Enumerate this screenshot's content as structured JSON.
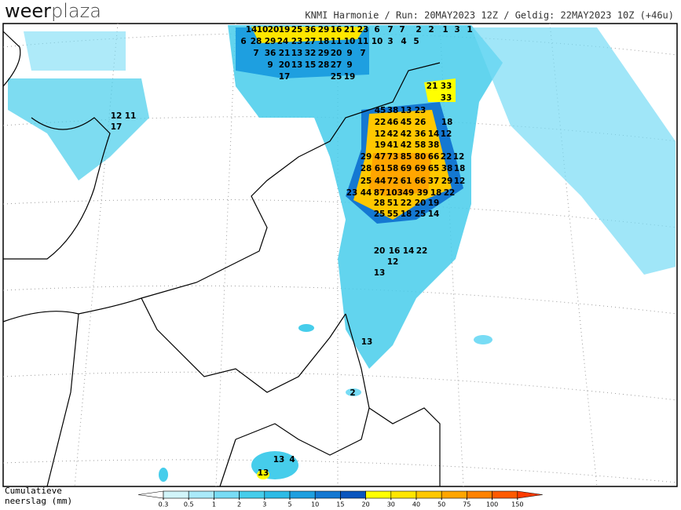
{
  "header": {
    "logo_left": "weer",
    "logo_right": "plaza",
    "info": "KNMI Harmonie / Run: 20MAY2023 12Z / Geldig: 22MAY2023 10Z (+46u)"
  },
  "legend": {
    "label_line1": "Cumulatieve",
    "label_line2": "neerslag (mm)",
    "ticks": [
      0.3,
      0.5,
      1,
      2,
      3,
      5,
      10,
      15,
      20,
      30,
      40,
      50,
      75,
      100,
      150
    ],
    "colors": [
      "#ffffff",
      "#d2f5fa",
      "#aaeafa",
      "#78dcf5",
      "#46cdeb",
      "#2dbbe6",
      "#1e9fe0",
      "#1478d2",
      "#0a55be",
      "#ffff00",
      "#ffe600",
      "#ffc800",
      "#ffa500",
      "#ff8200",
      "#ff5a00",
      "#ff3c00"
    ]
  },
  "map_labels": [
    14,
    10,
    20,
    19,
    25,
    36,
    29,
    16,
    21,
    23,
    6,
    7,
    7,
    2,
    2,
    1,
    3,
    1,
    6,
    28,
    29,
    24,
    23,
    27,
    18,
    11,
    10,
    11,
    10,
    3,
    4,
    5,
    7,
    36,
    21,
    13,
    32,
    29,
    20,
    9,
    7,
    9,
    20,
    13,
    15,
    28,
    27,
    9,
    17,
    25,
    19,
    21,
    33,
    33,
    45,
    38,
    13,
    23,
    22,
    46,
    45,
    26,
    18,
    12,
    42,
    42,
    36,
    14,
    12,
    19,
    41,
    42,
    58,
    38,
    29,
    47,
    73,
    85,
    80,
    66,
    22,
    12,
    28,
    61,
    58,
    69,
    69,
    65,
    38,
    18,
    25,
    44,
    72,
    61,
    66,
    37,
    29,
    12,
    23,
    44,
    87,
    103,
    49,
    39,
    18,
    22,
    28,
    51,
    22,
    20,
    19,
    25,
    55,
    18,
    25,
    14,
    20,
    16,
    14,
    22,
    12,
    13,
    13,
    2,
    13,
    4,
    13,
    12,
    11,
    17
  ]
}
